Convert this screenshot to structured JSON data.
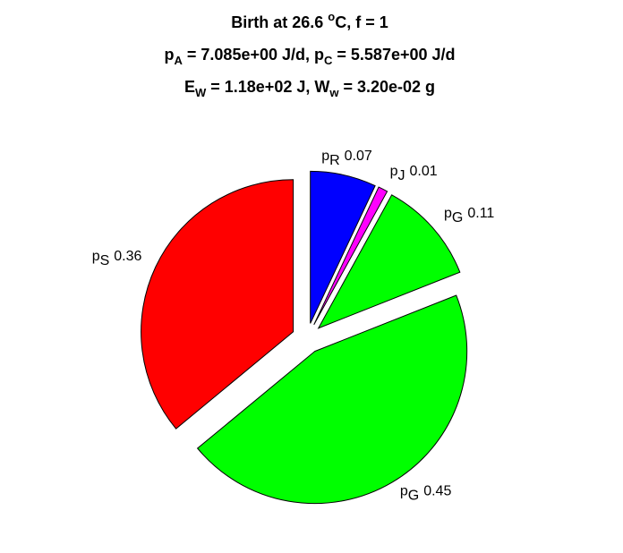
{
  "chart_data": {
    "type": "pie",
    "title": [
      [
        {
          "text": "Birth at 26.6 "
        },
        {
          "sup": "o"
        },
        {
          "text": "C, f = 1"
        }
      ],
      [
        {
          "text": "p"
        },
        {
          "sub": "A"
        },
        {
          "text": " = 7.085e+00 J/d, p"
        },
        {
          "sub": "C"
        },
        {
          "text": " = 5.587e+00 J/d"
        }
      ],
      [
        {
          "text": "E"
        },
        {
          "sub": "W"
        },
        {
          "text": " = 1.18e+02 J, W"
        },
        {
          "sub": "w"
        },
        {
          "text": " = 3.20e-02 g"
        }
      ]
    ],
    "categories": [
      [
        {
          "text": "p"
        },
        {
          "sub": "R"
        }
      ],
      [
        {
          "text": "p"
        },
        {
          "sub": "J"
        }
      ],
      [
        {
          "text": "p"
        },
        {
          "sub": "G"
        }
      ],
      [
        {
          "text": "p"
        },
        {
          "sub": "G"
        }
      ],
      [
        {
          "text": "p"
        },
        {
          "sub": "S"
        }
      ]
    ],
    "values": [
      0.07,
      0.01,
      0.11,
      0.45,
      0.36
    ],
    "colors": [
      "#0000ff",
      "#ff00ff",
      "#00ff00",
      "#00ff00",
      "#ff0000"
    ],
    "explode": true
  }
}
